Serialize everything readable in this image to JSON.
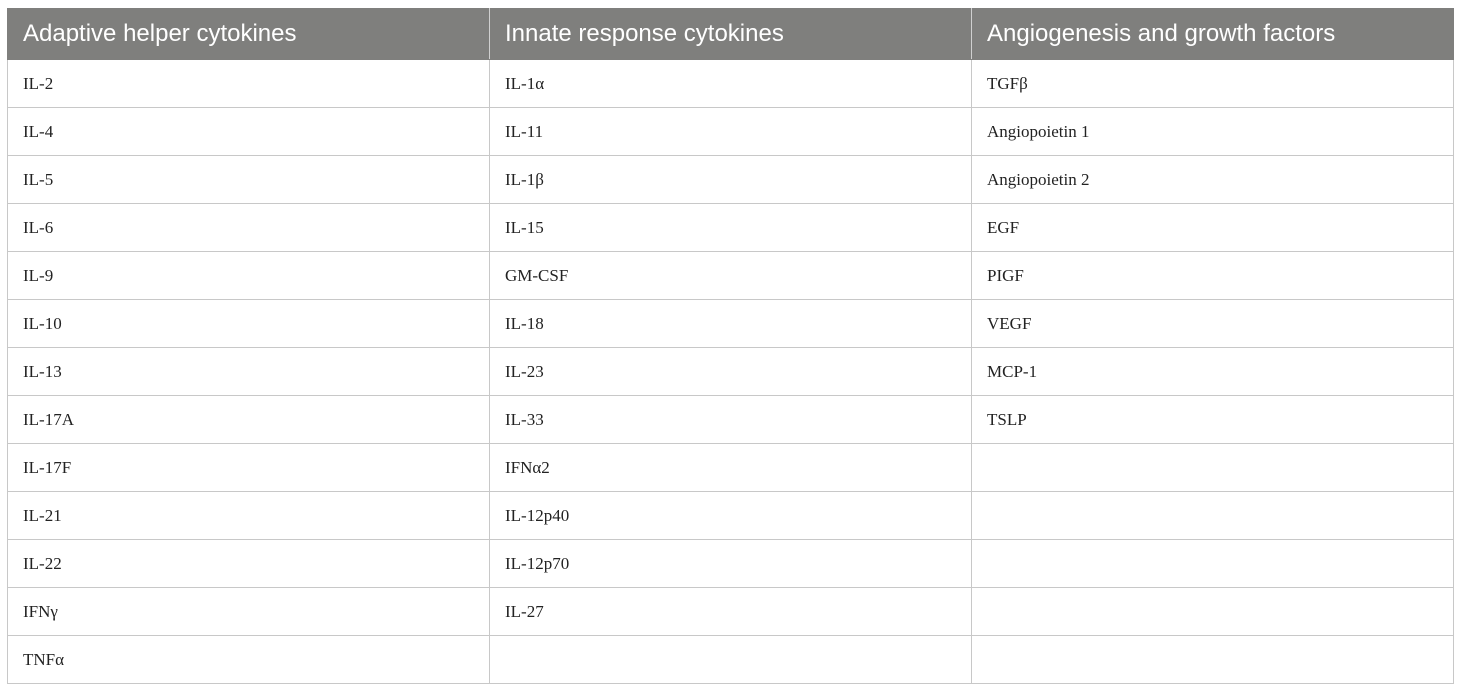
{
  "table": {
    "headers": [
      "Adaptive helper cytokines",
      "Innate response cytokines",
      "Angiogenesis and growth factors"
    ],
    "rows": [
      [
        "IL-2",
        "IL-1α",
        "TGFβ"
      ],
      [
        "IL-4",
        "IL-11",
        "Angiopoietin 1"
      ],
      [
        "IL-5",
        "IL-1β",
        "Angiopoietin 2"
      ],
      [
        "IL-6",
        "IL-15",
        "EGF"
      ],
      [
        "IL-9",
        "GM-CSF",
        "PIGF"
      ],
      [
        "IL-10",
        "IL-18",
        "VEGF"
      ],
      [
        "IL-13",
        "IL-23",
        "MCP-1"
      ],
      [
        "IL-17A",
        "IL-33",
        "TSLP"
      ],
      [
        "IL-17F",
        "IFNα2",
        ""
      ],
      [
        "IL-21",
        "IL-12p40",
        ""
      ],
      [
        "IL-22",
        "IL-12p70",
        ""
      ],
      [
        "IFNγ",
        "IL-27",
        ""
      ],
      [
        "TNFα",
        "",
        ""
      ]
    ]
  }
}
